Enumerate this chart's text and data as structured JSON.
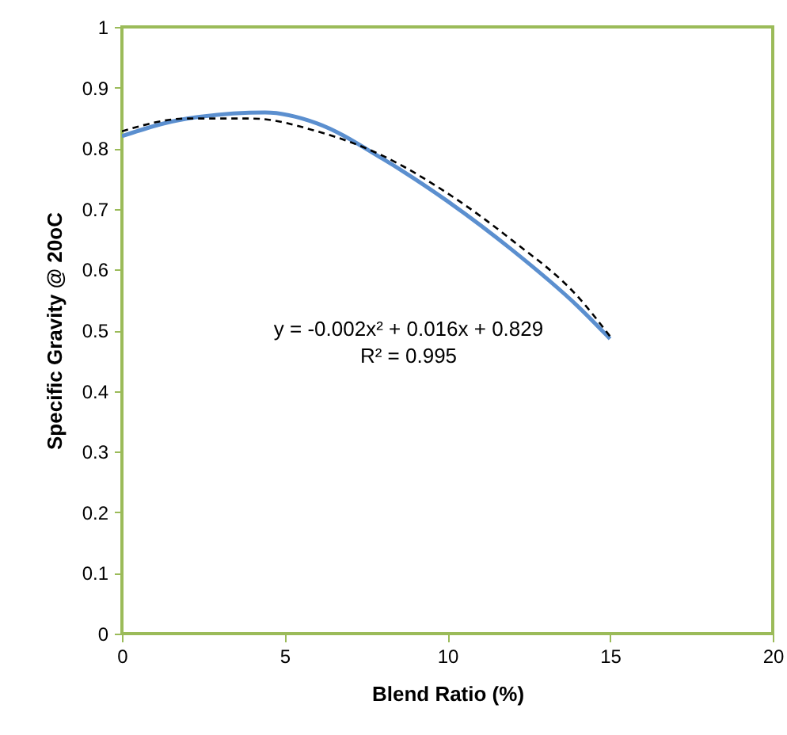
{
  "chart_data": {
    "type": "line",
    "xlabel": "Blend Ratio (%)",
    "ylabel": "Specific Gravity @ 20oC",
    "xlim": [
      0,
      20
    ],
    "xticks": [
      0,
      5,
      10,
      15,
      20
    ],
    "ylim": [
      0,
      1
    ],
    "yticks": [
      0,
      0.1,
      0.2,
      0.3,
      0.4,
      0.5,
      0.6,
      0.7,
      0.8,
      0.9,
      1
    ],
    "grid": false,
    "marker": "none",
    "series": [
      {
        "color": "#5b8fcf",
        "line_style": "solid",
        "x": [
          0,
          2,
          4.4,
          6,
          8,
          10,
          12,
          14,
          15
        ],
        "values": [
          0.82,
          0.849,
          0.859,
          0.841,
          0.783,
          0.713,
          0.632,
          0.54,
          0.486
        ]
      },
      {
        "color": "#000000",
        "line_style": "dashed",
        "x": [
          0,
          2,
          4,
          6,
          8,
          10,
          12,
          14,
          15
        ],
        "values": [
          0.828,
          0.849,
          0.849,
          0.828,
          0.788,
          0.726,
          0.648,
          0.556,
          0.49
        ]
      }
    ],
    "annotations": [
      "y = -0.002x² + 0.016x + 0.829",
      "R² = 0.995"
    ]
  }
}
